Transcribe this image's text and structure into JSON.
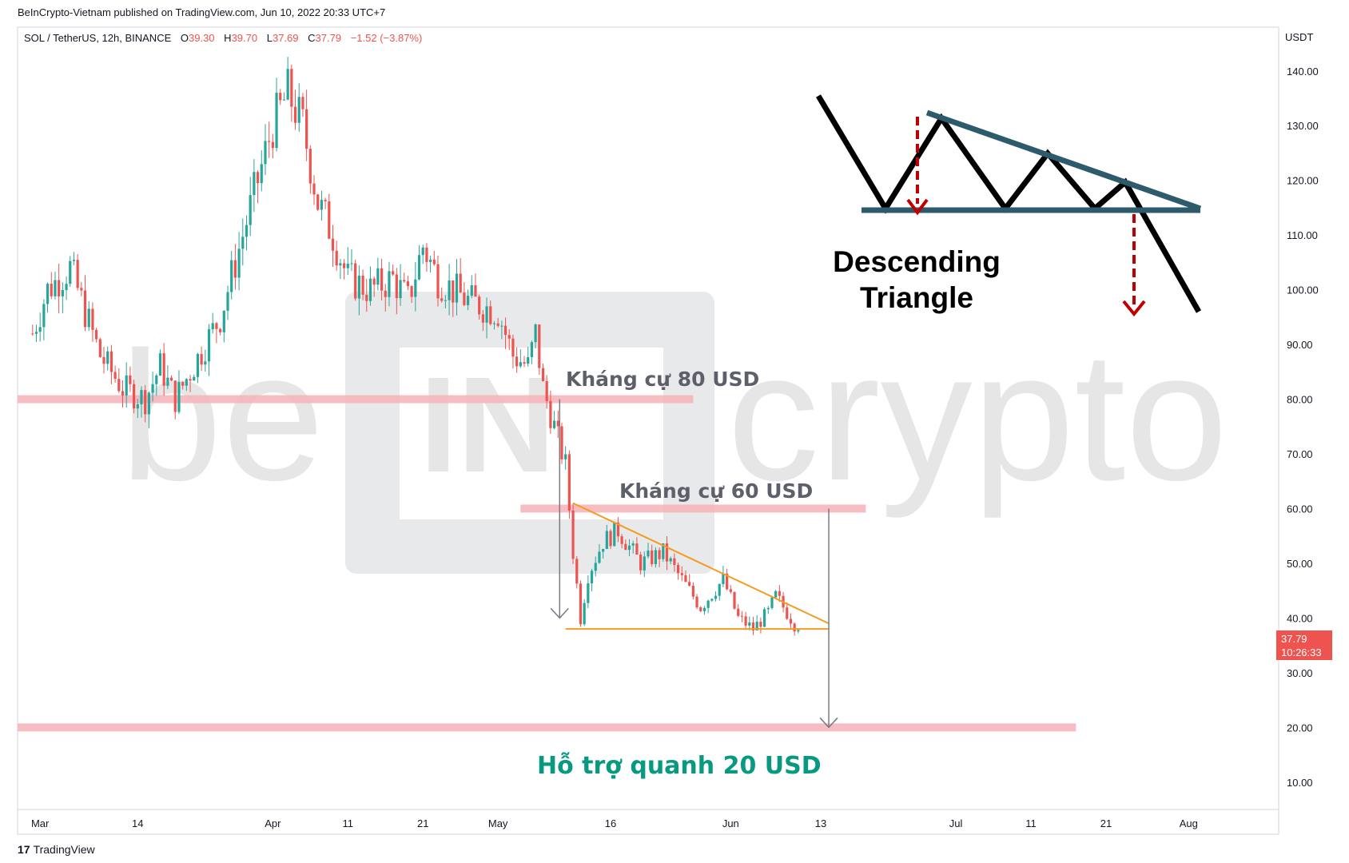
{
  "header": {
    "published": "BeInCrypto-Vietnam published on TradingView.com, Jun 10, 2022 20:33 UTC+7",
    "symbol": "SOL / TetherUS, 12h, BINANCE",
    "o_label": "O",
    "o": "39.30",
    "h_label": "H",
    "h": "39.70",
    "l_label": "L",
    "l": "37.69",
    "c_label": "C",
    "c": "37.79",
    "change": "−1.52 (−3.87%)"
  },
  "axis": {
    "currency": "USDT",
    "last_price": "37.79",
    "countdown": "10:26:33"
  },
  "footer": {
    "logo": "17",
    "brand": "TradingView"
  },
  "colors": {
    "up": "#26a69a",
    "down": "#ef5350",
    "zone": "#f7b2b7",
    "triangle": "#f59b21",
    "arrow": "#787b86",
    "support_text": "#089981",
    "resistance_text": "#5d606b",
    "pattern_line": "#2e5b6b"
  },
  "watermark": {
    "left": "be",
    "right": "crypto",
    "mark": "IN"
  },
  "chart_data": {
    "type": "candlestick",
    "interval": "12h",
    "ylim": [
      5,
      148
    ],
    "y_ticks": [
      10,
      20,
      30,
      40,
      50,
      60,
      70,
      80,
      90,
      100,
      110,
      120,
      130,
      140
    ],
    "y_tick_labels": [
      "10.00",
      "20.00",
      "30.00",
      "40.00",
      "50.00",
      "60.00",
      "70.00",
      "80.00",
      "90.00",
      "100.00",
      "110.00",
      "120.00",
      "130.00",
      "140.00"
    ],
    "x_ticks": [
      "2022-03-01",
      "2022-03-14",
      "2022-04-01",
      "2022-04-11",
      "2022-04-21",
      "2022-05-01",
      "2022-05-16",
      "2022-06-01",
      "2022-06-13",
      "2022-07-01",
      "2022-07-11",
      "2022-07-21",
      "2022-08-01"
    ],
    "x_tick_labels": [
      "Mar",
      "14",
      "Apr",
      "11",
      "21",
      "May",
      "16",
      "Jun",
      "13",
      "Jul",
      "11",
      "21",
      "Aug"
    ],
    "closes_anchor": [
      [
        "2022-02-28",
        92
      ],
      [
        "2022-03-02",
        100
      ],
      [
        "2022-03-05",
        104
      ],
      [
        "2022-03-09",
        88
      ],
      [
        "2022-03-12",
        82
      ],
      [
        "2022-03-15",
        80
      ],
      [
        "2022-03-17",
        86
      ],
      [
        "2022-03-19",
        80
      ],
      [
        "2022-03-23",
        90
      ],
      [
        "2022-03-25",
        95
      ],
      [
        "2022-03-28",
        110
      ],
      [
        "2022-04-01",
        130
      ],
      [
        "2022-04-03",
        136
      ],
      [
        "2022-04-05",
        130
      ],
      [
        "2022-04-07",
        116
      ],
      [
        "2022-04-09",
        110
      ],
      [
        "2022-04-11",
        102
      ],
      [
        "2022-04-14",
        100
      ],
      [
        "2022-04-17",
        102
      ],
      [
        "2022-04-19",
        98
      ],
      [
        "2022-04-21",
        108
      ],
      [
        "2022-04-23",
        102
      ],
      [
        "2022-04-27",
        98
      ],
      [
        "2022-05-01",
        96
      ],
      [
        "2022-05-03",
        88
      ],
      [
        "2022-05-05",
        86
      ],
      [
        "2022-05-06",
        92
      ],
      [
        "2022-05-07",
        82
      ],
      [
        "2022-05-10",
        68
      ],
      [
        "2022-05-11",
        52
      ],
      [
        "2022-05-12",
        40
      ],
      [
        "2022-05-13",
        48
      ],
      [
        "2022-05-15",
        54
      ],
      [
        "2022-05-17",
        56
      ],
      [
        "2022-05-20",
        50
      ],
      [
        "2022-05-23",
        52
      ],
      [
        "2022-05-25",
        48
      ],
      [
        "2022-05-28",
        42
      ],
      [
        "2022-05-31",
        47
      ],
      [
        "2022-06-02",
        40
      ],
      [
        "2022-06-04",
        38
      ],
      [
        "2022-06-06",
        41
      ],
      [
        "2022-06-07",
        44
      ],
      [
        "2022-06-09",
        40
      ],
      [
        "2022-06-10",
        37.79
      ]
    ],
    "zones": [
      {
        "label": "",
        "price": 80
      },
      {
        "label": "",
        "price": 60
      },
      {
        "label": "",
        "price": 20
      }
    ],
    "annotations": {
      "resistance_80": "Kháng cự 80 USD",
      "resistance_60": "Kháng cự 60 USD",
      "support_20": "Hỗ trợ quanh 20 USD",
      "pattern": [
        "Descending",
        "Triangle"
      ]
    },
    "triangle": {
      "top_start": [
        "2022-05-11",
        61
      ],
      "top_end": [
        "2022-06-13",
        39
      ],
      "base": 38,
      "base_start": [
        "2022-05-10",
        38
      ],
      "base_end": [
        "2022-06-13",
        38
      ]
    },
    "measured_moves": [
      {
        "from": [
          "2022-05-09",
          80
        ],
        "to": [
          "2022-05-09",
          40
        ]
      },
      {
        "from": [
          "2022-06-13",
          60
        ],
        "to": [
          "2022-06-13",
          20
        ]
      }
    ]
  }
}
